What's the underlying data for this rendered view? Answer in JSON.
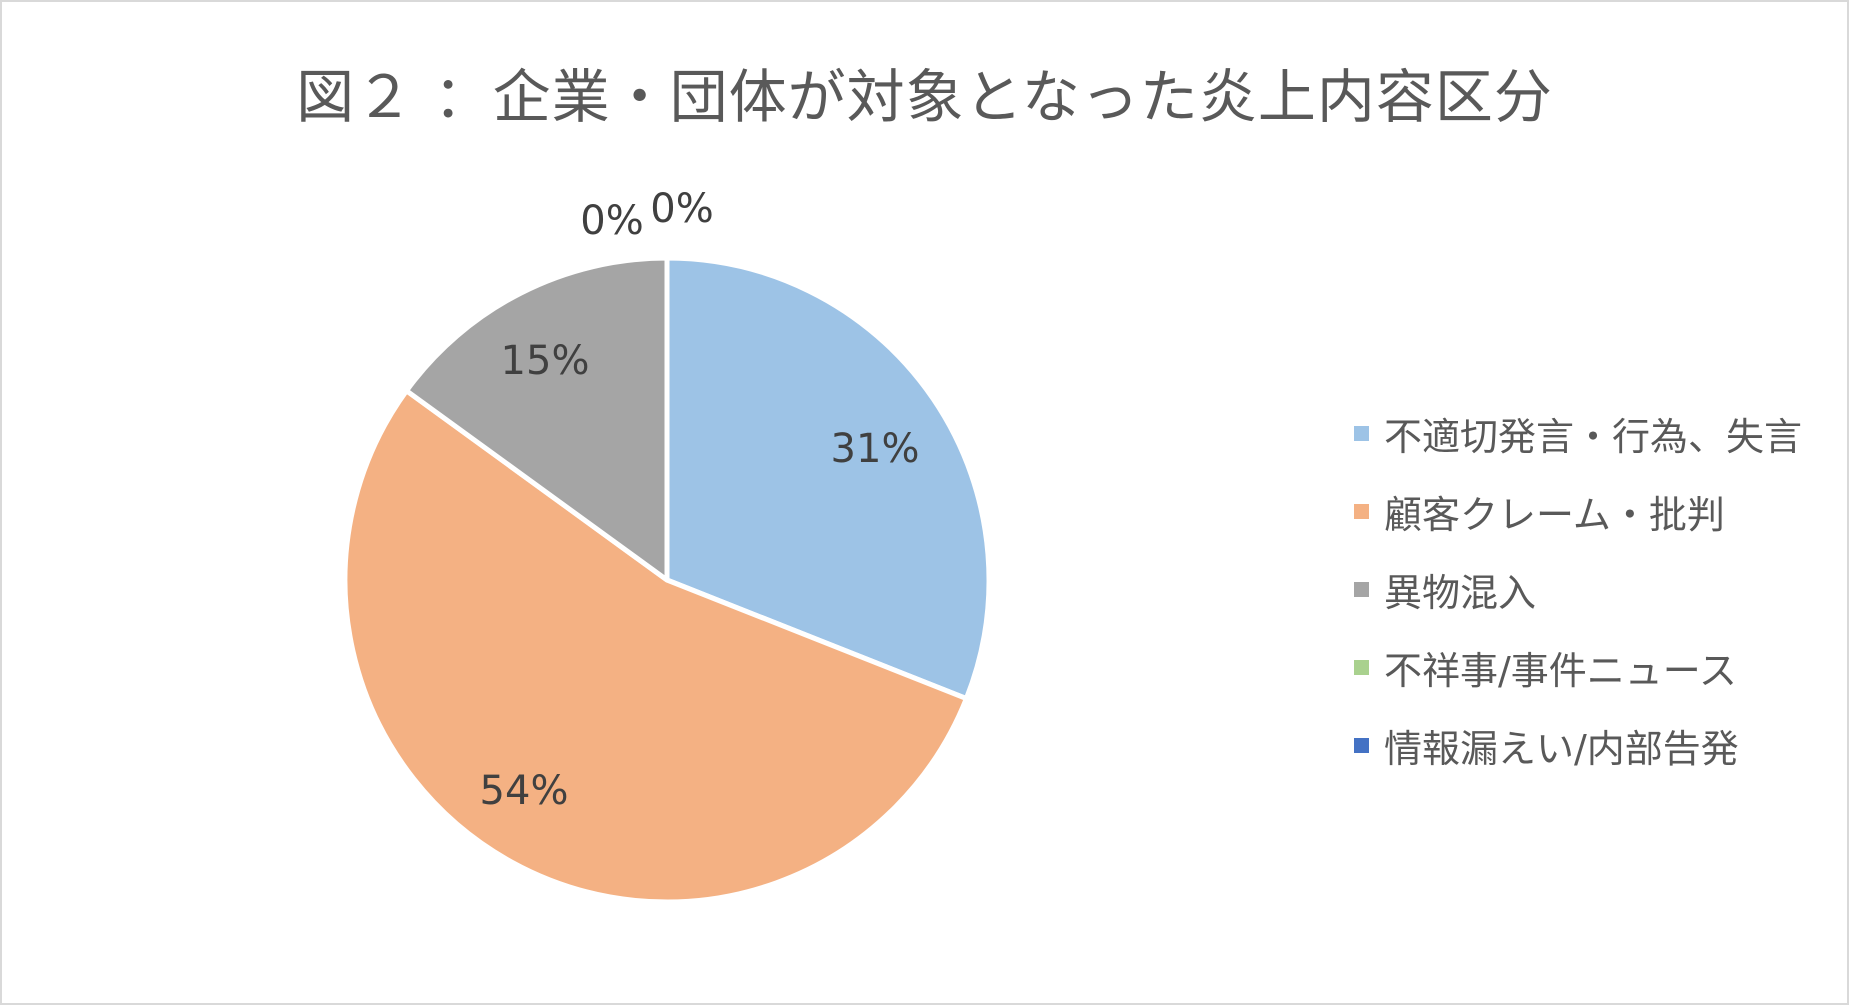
{
  "chart_data": {
    "type": "pie",
    "title": "図２ ：企業・団体が対象となった炎上内容区分",
    "legend_position": "right",
    "categories": [
      "不適切発言・行為、失言",
      "顧客クレーム・批判",
      "異物混入",
      "不祥事/事件ニュース",
      "情報漏えい/内部告発"
    ],
    "values": [
      31,
      54,
      15,
      0,
      0
    ],
    "labels": [
      "31%",
      "54%",
      "15%",
      "0%",
      "0%"
    ],
    "colors": [
      "#9dc3e6",
      "#f4b183",
      "#a5a5a5",
      "#a9d18e",
      "#4472c4"
    ]
  }
}
